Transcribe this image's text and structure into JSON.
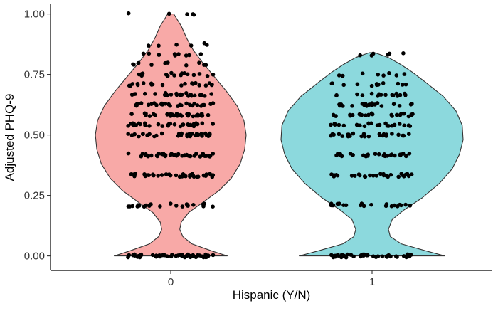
{
  "chart_data": {
    "type": "violin",
    "xlabel": "Hispanic (Y/N)",
    "ylabel": "Adjusted PHQ-9",
    "categories": [
      "0",
      "1"
    ],
    "ylim": [
      -0.06,
      1.04
    ],
    "y_ticks": [
      0.0,
      0.25,
      0.5,
      0.75,
      1.0
    ],
    "y_tick_labels": [
      "0.00",
      "0.25",
      "0.50",
      "0.75",
      "1.00"
    ],
    "grid": false,
    "legend": "none",
    "groups": [
      {
        "category": "0",
        "fill": "#F8A9A7",
        "y_min": 0.0,
        "y_max": 1.0,
        "density_profile": [
          [
            0.0,
            0.75
          ],
          [
            0.02,
            0.55
          ],
          [
            0.05,
            0.28
          ],
          [
            0.08,
            0.16
          ],
          [
            0.11,
            0.12
          ],
          [
            0.14,
            0.14
          ],
          [
            0.18,
            0.24
          ],
          [
            0.22,
            0.42
          ],
          [
            0.27,
            0.64
          ],
          [
            0.32,
            0.8
          ],
          [
            0.38,
            0.92
          ],
          [
            0.44,
            0.98
          ],
          [
            0.5,
            1.0
          ],
          [
            0.56,
            0.97
          ],
          [
            0.62,
            0.88
          ],
          [
            0.68,
            0.74
          ],
          [
            0.74,
            0.58
          ],
          [
            0.8,
            0.42
          ],
          [
            0.85,
            0.3
          ],
          [
            0.9,
            0.21
          ],
          [
            0.95,
            0.14
          ],
          [
            0.98,
            0.08
          ],
          [
            1.0,
            0.04
          ]
        ],
        "point_levels": [
          [
            0.0,
            55
          ],
          [
            0.21,
            22
          ],
          [
            0.333,
            40
          ],
          [
            0.417,
            40
          ],
          [
            0.5,
            35
          ],
          [
            0.542,
            32
          ],
          [
            0.583,
            30
          ],
          [
            0.625,
            28
          ],
          [
            0.667,
            25
          ],
          [
            0.708,
            20
          ],
          [
            0.75,
            16
          ],
          [
            0.792,
            12
          ],
          [
            0.833,
            9
          ],
          [
            0.875,
            6
          ],
          [
            1.0,
            5
          ]
        ]
      },
      {
        "category": "1",
        "fill": "#8CD9DD",
        "y_min": 0.0,
        "y_max": 0.84,
        "density_profile": [
          [
            0.0,
            0.8
          ],
          [
            0.02,
            0.6
          ],
          [
            0.05,
            0.32
          ],
          [
            0.08,
            0.2
          ],
          [
            0.11,
            0.18
          ],
          [
            0.15,
            0.22
          ],
          [
            0.19,
            0.35
          ],
          [
            0.24,
            0.55
          ],
          [
            0.3,
            0.74
          ],
          [
            0.36,
            0.88
          ],
          [
            0.42,
            0.96
          ],
          [
            0.48,
            1.0
          ],
          [
            0.54,
            0.99
          ],
          [
            0.6,
            0.92
          ],
          [
            0.66,
            0.78
          ],
          [
            0.72,
            0.58
          ],
          [
            0.76,
            0.44
          ],
          [
            0.79,
            0.32
          ],
          [
            0.82,
            0.18
          ],
          [
            0.84,
            0.03
          ]
        ],
        "point_levels": [
          [
            0.0,
            45
          ],
          [
            0.21,
            22
          ],
          [
            0.333,
            30
          ],
          [
            0.417,
            28
          ],
          [
            0.5,
            25
          ],
          [
            0.542,
            24
          ],
          [
            0.583,
            24
          ],
          [
            0.625,
            20
          ],
          [
            0.667,
            16
          ],
          [
            0.708,
            12
          ],
          [
            0.75,
            8
          ],
          [
            0.833,
            6
          ]
        ]
      }
    ]
  }
}
